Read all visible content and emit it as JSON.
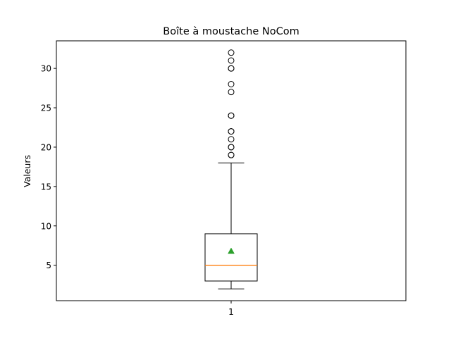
{
  "chart_data": {
    "type": "box",
    "title": "Boîte à moustache NoCom",
    "xlabel": "",
    "ylabel": "Valeurs",
    "categories": [
      "1"
    ],
    "ylim": [
      0.5,
      33.5
    ],
    "yticks": [
      5,
      10,
      15,
      20,
      25,
      30
    ],
    "grid": false,
    "box": {
      "whisker_low": 2,
      "q1": 3,
      "median": 5,
      "q3": 9,
      "whisker_high": 18,
      "mean": 6.8
    },
    "outliers": [
      19,
      19,
      20,
      20,
      21,
      22,
      22,
      24,
      24,
      27,
      28,
      30,
      30,
      31,
      32
    ],
    "colors": {
      "median": "#ff7f0e",
      "mean": "#2ca02c",
      "box": "#000000"
    }
  }
}
